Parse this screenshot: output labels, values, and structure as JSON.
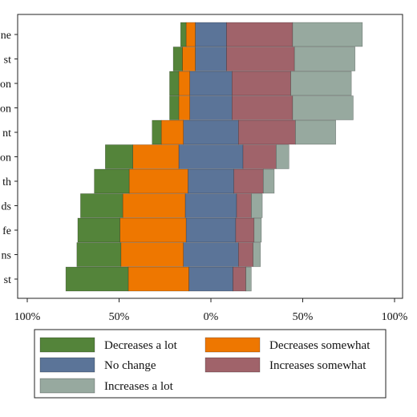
{
  "chart_data": {
    "type": "bar",
    "orientation": "horizontal",
    "stacked": "diverging",
    "title": "",
    "xlabel": "",
    "ylabel": "",
    "xlim": [
      -100,
      100
    ],
    "x_ticks": [
      -100,
      -50,
      0,
      50,
      100
    ],
    "x_tick_labels": [
      "100%",
      "50%",
      "0%",
      "50%",
      "100%"
    ],
    "grid": false,
    "legend_position": "bottom",
    "categories": [
      "ne",
      "st",
      "on",
      "on",
      "nt",
      "on",
      "th",
      "ds",
      "fe",
      "ns",
      "st"
    ],
    "series": [
      {
        "name": "Decreases a lot",
        "color": "#54843a",
        "values": [
          3,
          5,
          5,
          5,
          5,
          15,
          19,
          23,
          23,
          24,
          34
        ]
      },
      {
        "name": "Decreases somewhat",
        "color": "#ee7700",
        "values": [
          5,
          7,
          6,
          6,
          12,
          25,
          32,
          34,
          36,
          34,
          33
        ]
      },
      {
        "name": "No change",
        "color": "#5b7498",
        "values": [
          17,
          17,
          23,
          23,
          30,
          35,
          25,
          28,
          27,
          30,
          24
        ]
      },
      {
        "name": "Increases somewhat",
        "color": "#a0636a",
        "values": [
          36,
          37,
          32,
          33,
          31,
          18,
          16,
          8,
          10,
          8,
          7
        ]
      },
      {
        "name": "Increases a lot",
        "color": "#97a99f",
        "values": [
          38,
          33,
          33,
          33,
          22,
          7,
          6,
          6,
          4,
          4,
          3
        ]
      }
    ]
  }
}
